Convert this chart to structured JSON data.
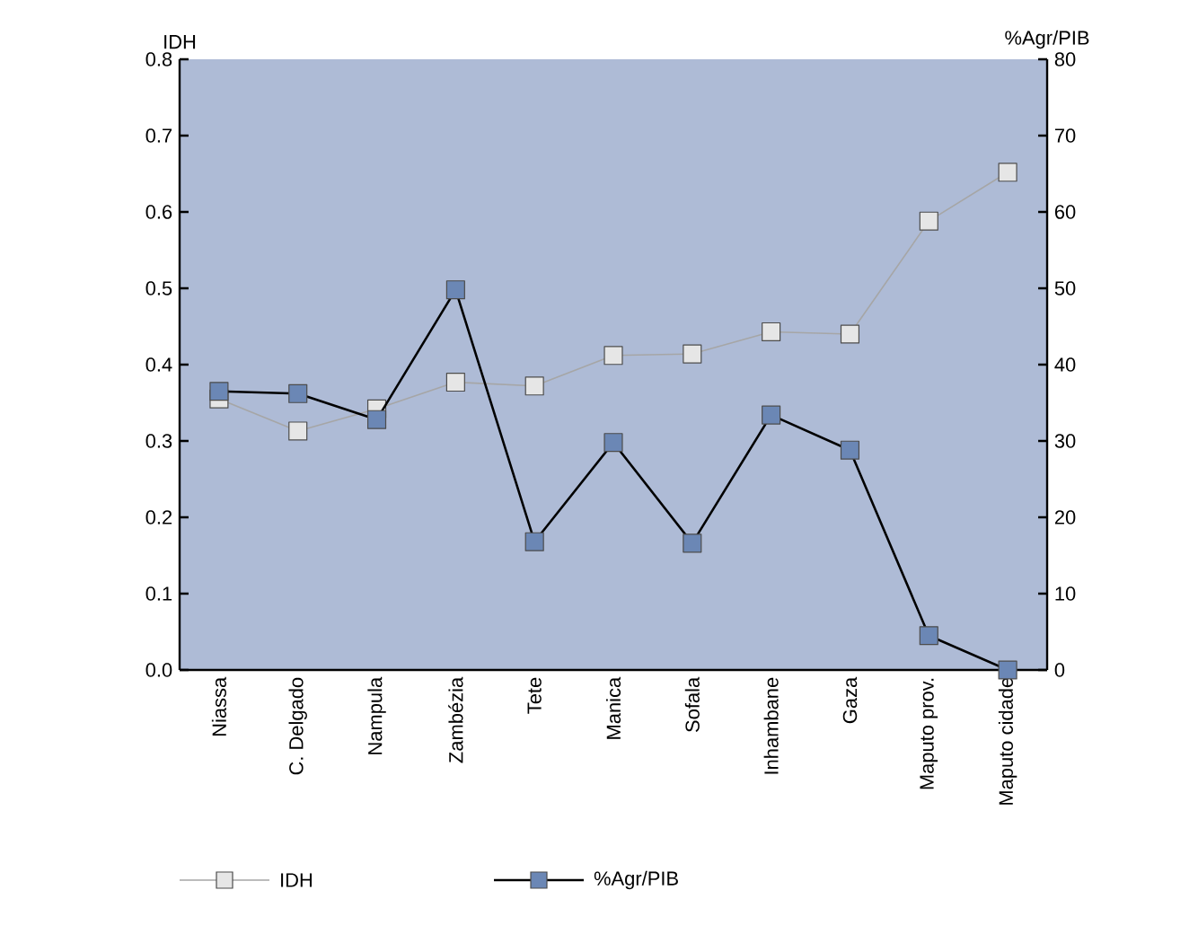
{
  "chart_data": {
    "type": "line",
    "categories": [
      "Niassa",
      "C. Delgado",
      "Nampula",
      "Zambézia",
      "Tete",
      "Manica",
      "Sofala",
      "Inhambane",
      "Gaza",
      "Maputo prov.",
      "Maputo cidade"
    ],
    "ylabel": "IDH",
    "y2label": "%Agr/PIB",
    "ylim": [
      0,
      0.8
    ],
    "yticks": [
      {
        "value": 0,
        "label": "0.0"
      },
      0.1,
      0.2,
      0.3,
      0.4,
      0.5,
      0.6,
      0.7,
      0.8
    ],
    "y2lim": [
      0,
      80
    ],
    "y2ticks": [
      0,
      10,
      20,
      30,
      40,
      50,
      60,
      70,
      80
    ],
    "series": [
      {
        "name": "IDH",
        "color": "#e6e6e6",
        "values": [
          0.355,
          0.313,
          0.342,
          0.377,
          0.372,
          0.412,
          0.414,
          0.443,
          0.44,
          0.588,
          0.652
        ]
      },
      {
        "name": "%Agr/PIB",
        "color": "#6b87b5",
        "axis": "y2",
        "values": [
          36.5,
          36.2,
          32.8,
          49.8,
          16.8,
          29.8,
          16.6,
          33.4,
          28.8,
          4.5,
          0
        ]
      }
    ],
    "marker": "square",
    "legend": "bottom",
    "grid": false
  }
}
